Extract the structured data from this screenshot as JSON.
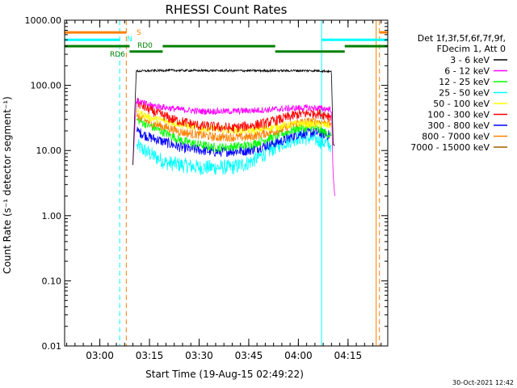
{
  "chart_data": {
    "type": "line",
    "title": "RHESSI Count Rates",
    "ylabel": "Count Rate (s⁻¹ detector segment⁻¹)",
    "xlabel": "Start Time (19-Aug-15 02:49:22)",
    "y_scale": "log",
    "ylim": [
      0.01,
      1000
    ],
    "y_ticks": [
      0.01,
      0.1,
      1,
      10,
      100,
      1000
    ],
    "y_tick_labels": [
      "0.01",
      "0.10",
      "1.00",
      "10.00",
      "100.00",
      "1000.00"
    ],
    "xlim": [
      "02:49:22",
      "04:27:00"
    ],
    "x_ticks": [
      "03:00",
      "03:15",
      "03:30",
      "03:45",
      "04:00",
      "04:15"
    ],
    "grid": false,
    "legend_header": [
      "Det 1f,3f,5f,6f,7f,9f,",
      "FDecim 1, Att 0"
    ],
    "legend_position": "right",
    "series": [
      {
        "name": "3 - 6 keV",
        "color": "#000000",
        "x": [
          "03:10:00",
          "03:11:00",
          "03:20:00",
          "03:35:00",
          "03:50:00",
          "04:05:00",
          "04:09:00",
          "04:10:00",
          "04:10:30",
          "04:11:00"
        ],
        "values": [
          6,
          165,
          170,
          168,
          168,
          168,
          165,
          160,
          12,
          12
        ]
      },
      {
        "name": "6 - 12 keV",
        "color": "#ff00ff",
        "x": [
          "03:10:00",
          "03:11:00",
          "03:15:00",
          "03:22:00",
          "03:30:00",
          "03:40:00",
          "03:50:00",
          "04:00:00",
          "04:05:00",
          "04:10:00",
          "04:10:30",
          "04:11:00"
        ],
        "values": [
          6,
          58,
          50,
          44,
          40,
          40,
          42,
          45,
          45,
          43,
          4,
          2
        ]
      },
      {
        "name": "12 - 25 keV",
        "color": "#00ff00",
        "x": [
          "03:11:00",
          "03:15:00",
          "03:25:00",
          "03:35:00",
          "03:45:00",
          "03:55:00",
          "04:00:00",
          "04:05:00",
          "04:10:00"
        ],
        "values": [
          30,
          24,
          14,
          11,
          12,
          18,
          22,
          22,
          17
        ]
      },
      {
        "name": "25 - 50 keV",
        "color": "#00ffff",
        "x": [
          "03:11:00",
          "03:15:00",
          "03:20:00",
          "03:30:00",
          "03:40:00",
          "03:45:00",
          "03:50:00",
          "03:55:00",
          "04:00:00",
          "04:05:00",
          "04:10:00"
        ],
        "values": [
          12,
          9,
          6.5,
          5.5,
          5.5,
          6.5,
          9,
          13,
          16,
          15,
          12
        ]
      },
      {
        "name": "50 - 100 keV",
        "color": "#ffff00",
        "x": [
          "03:11:00",
          "03:15:00",
          "03:30:00",
          "03:45:00",
          "04:00:00",
          "04:10:00"
        ],
        "values": [
          40,
          32,
          22,
          20,
          26,
          24
        ]
      },
      {
        "name": "100 - 300 keV",
        "color": "#ff0000",
        "x": [
          "03:11:00",
          "03:15:00",
          "03:22:00",
          "03:30:00",
          "03:40:00",
          "03:50:00",
          "04:00:00",
          "04:05:00",
          "04:10:00"
        ],
        "values": [
          55,
          42,
          30,
          24,
          22,
          26,
          36,
          38,
          34
        ]
      },
      {
        "name": "300 - 800 keV",
        "color": "#0000ff",
        "x": [
          "03:11:00",
          "03:15:00",
          "03:25:00",
          "03:35:00",
          "03:45:00",
          "03:55:00",
          "04:00:00",
          "04:05:00",
          "04:10:00"
        ],
        "values": [
          20,
          16,
          11,
          9.5,
          10,
          14,
          18,
          19,
          17
        ]
      },
      {
        "name": "800 - 7000 keV",
        "color": "#ff8000",
        "x": [
          "03:11:00",
          "03:15:00",
          "03:25:00",
          "03:35:00",
          "03:45:00",
          "03:55:00",
          "04:00:00",
          "04:05:00",
          "04:10:00"
        ],
        "values": [
          34,
          27,
          19,
          16,
          16,
          21,
          27,
          28,
          26
        ]
      },
      {
        "name": "7000 - 15000 keV",
        "color": "#a06000",
        "x": [],
        "values": []
      }
    ],
    "flags": [
      {
        "label": "S",
        "color": "#ff8000",
        "y_value": 650,
        "segments": [
          [
            "02:49:22",
            "03:08:00"
          ],
          [
            "04:24:30",
            "04:27:00"
          ]
        ]
      },
      {
        "label": "N",
        "color": "#00ffff",
        "y_value": 500,
        "segments": [
          [
            "02:49:22",
            "03:06:00"
          ],
          [
            "04:07:00",
            "04:27:00"
          ]
        ]
      },
      {
        "label": "RD0",
        "color": "#008000",
        "y_value": 400,
        "segments": [
          [
            "02:49:22",
            "03:09:00"
          ],
          [
            "03:19:00",
            "03:53:00"
          ],
          [
            "04:14:00",
            "04:27:00"
          ]
        ]
      },
      {
        "label": "RD6",
        "color": "#008000",
        "y_value": 330,
        "segments": [
          [
            "03:09:00",
            "03:19:00"
          ],
          [
            "03:53:00",
            "04:14:00"
          ]
        ]
      }
    ],
    "vertical_lines": [
      {
        "x": "02:49:22",
        "color": "#00ffff",
        "style": "solid"
      },
      {
        "x": "03:06:00",
        "color": "#00ffff",
        "style": "dashed"
      },
      {
        "x": "03:08:00",
        "color": "#ff8000",
        "style": "dashed"
      },
      {
        "x": "04:07:00",
        "color": "#00ffff",
        "style": "solid"
      },
      {
        "x": "04:23:30",
        "color": "#ff8000",
        "style": "solid"
      },
      {
        "x": "04:24:30",
        "color": "#ff8000",
        "style": "dashed"
      }
    ],
    "timestamp": "30-Oct-2021 12:42"
  }
}
